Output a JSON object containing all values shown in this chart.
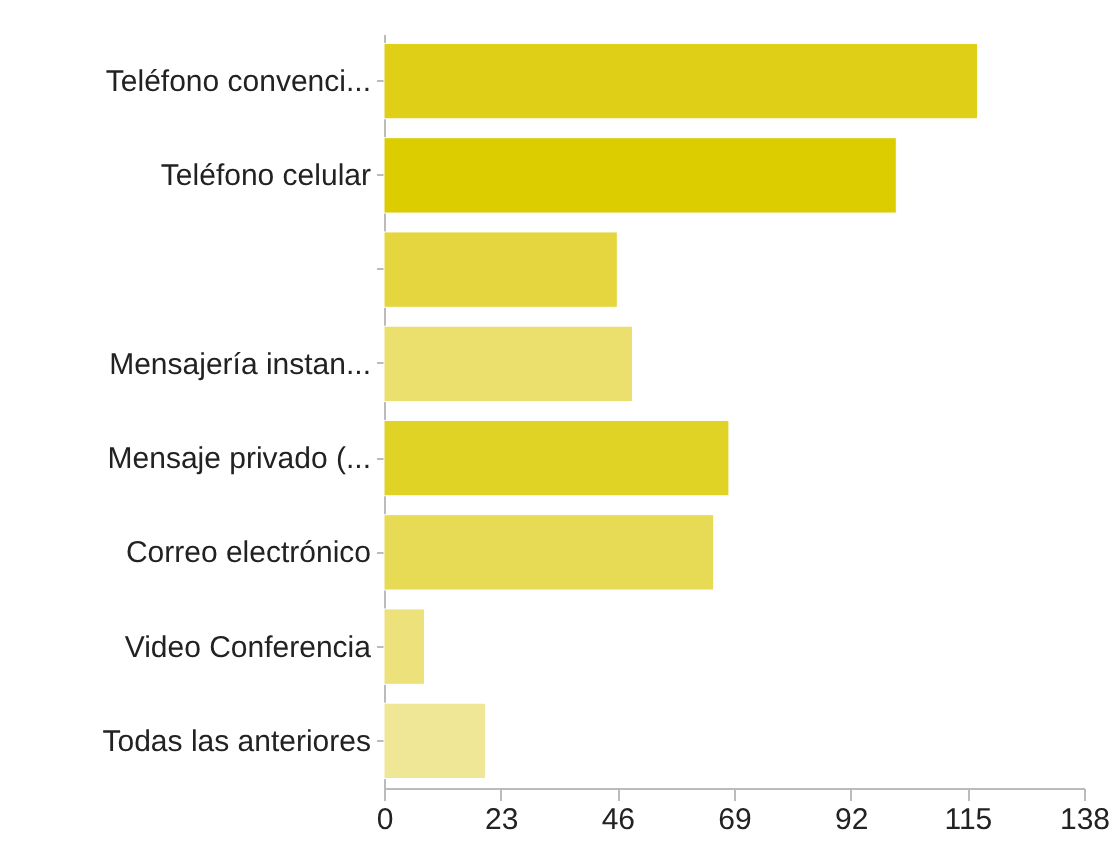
{
  "chart_data": {
    "type": "bar",
    "orientation": "horizontal",
    "categories": [
      "Teléfono convenci...",
      "Teléfono celular",
      null,
      "Mensajería instan...",
      "Mensaje privado (...",
      "Correo electrónico",
      "Video Conferencia",
      "Todas las anteriores"
    ],
    "values": [
      117,
      101,
      46,
      49,
      68,
      65,
      8,
      20
    ],
    "colors": [
      "#dfcf17",
      "#dccd00",
      "#e5d640",
      "#ebdf6e",
      "#e1d326",
      "#e7da55",
      "#ece17a",
      "#efe696"
    ],
    "xlim": [
      0,
      138
    ],
    "xticks": [
      0,
      23,
      46,
      69,
      92,
      115,
      138
    ],
    "grid": false
  }
}
